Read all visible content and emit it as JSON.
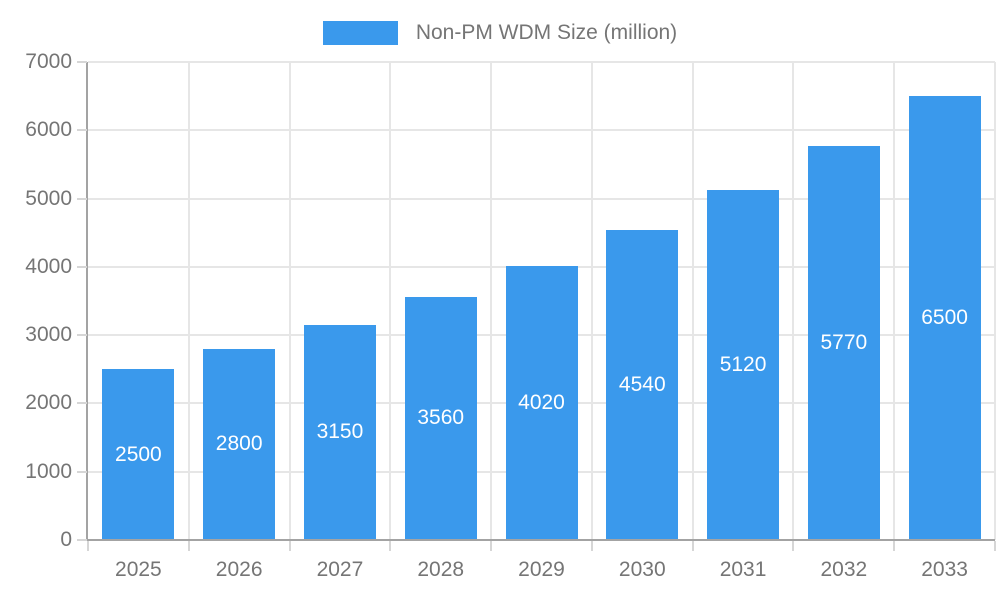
{
  "colors": {
    "bar": "#3A99EC",
    "grid": "#e6e6e6",
    "axis": "#a3a3a3",
    "tick": "#d6d6d6",
    "text": "#757575",
    "value_label": "#ffffff"
  },
  "chart_data": {
    "type": "bar",
    "categories": [
      "2025",
      "2026",
      "2027",
      "2028",
      "2029",
      "2030",
      "2031",
      "2032",
      "2033"
    ],
    "series": [
      {
        "name": "Non-PM WDM Size (million)",
        "values": [
          2500,
          2800,
          3150,
          3560,
          4020,
          4540,
          5120,
          5770,
          6500
        ]
      }
    ],
    "title": "",
    "xlabel": "",
    "ylabel": "",
    "ylim": [
      0,
      7000
    ],
    "yticks": [
      0,
      1000,
      2000,
      3000,
      4000,
      5000,
      6000,
      7000
    ],
    "legend_position": "top-center",
    "grid": true,
    "value_labels": "inside-center"
  }
}
